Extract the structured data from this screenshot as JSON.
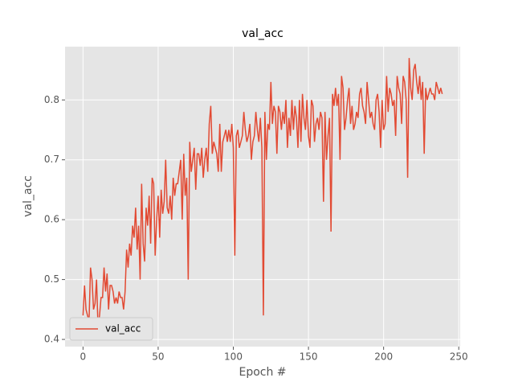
{
  "chart_data": {
    "type": "line",
    "title": "val_acc",
    "x_label": "Epoch #",
    "y_label": "val_acc",
    "x": [
      0,
      1,
      2,
      3,
      4,
      5,
      6,
      7,
      8,
      9,
      10,
      11,
      12,
      13,
      14,
      15,
      16,
      17,
      18,
      19,
      20,
      21,
      22,
      23,
      24,
      25,
      26,
      27,
      28,
      29,
      30,
      31,
      32,
      33,
      34,
      35,
      36,
      37,
      38,
      39,
      40,
      41,
      42,
      43,
      44,
      45,
      46,
      47,
      48,
      49,
      50,
      51,
      52,
      53,
      54,
      55,
      56,
      57,
      58,
      59,
      60,
      61,
      62,
      63,
      64,
      65,
      66,
      67,
      68,
      69,
      70,
      71,
      72,
      73,
      74,
      75,
      76,
      77,
      78,
      79,
      80,
      81,
      82,
      83,
      84,
      85,
      86,
      87,
      88,
      89,
      90,
      91,
      92,
      93,
      94,
      95,
      96,
      97,
      98,
      99,
      100,
      101,
      102,
      103,
      104,
      105,
      106,
      107,
      108,
      109,
      110,
      111,
      112,
      113,
      114,
      115,
      116,
      117,
      118,
      119,
      120,
      121,
      122,
      123,
      124,
      125,
      126,
      127,
      128,
      129,
      130,
      131,
      132,
      133,
      134,
      135,
      136,
      137,
      138,
      139,
      140,
      141,
      142,
      143,
      144,
      145,
      146,
      147,
      148,
      149,
      150,
      151,
      152,
      153,
      154,
      155,
      156,
      157,
      158,
      159,
      160,
      161,
      162,
      163,
      164,
      165,
      166,
      167,
      168,
      169,
      170,
      171,
      172,
      173,
      174,
      175,
      176,
      177,
      178,
      179,
      180,
      181,
      182,
      183,
      184,
      185,
      186,
      187,
      188,
      189,
      190,
      191,
      192,
      193,
      194,
      195,
      196,
      197,
      198,
      199,
      200,
      201,
      202,
      203,
      204,
      205,
      206,
      207,
      208,
      209,
      210,
      211,
      212,
      213,
      214,
      215,
      216,
      217,
      218,
      219,
      220,
      221,
      222,
      223,
      224,
      225,
      226,
      227,
      228,
      229,
      230,
      231,
      232,
      233,
      234,
      235,
      236,
      237,
      238,
      239
    ],
    "series": [
      {
        "name": "val_acc",
        "color": "#e24a33",
        "values": [
          0.44,
          0.49,
          0.45,
          0.44,
          0.43,
          0.52,
          0.5,
          0.45,
          0.46,
          0.5,
          0.42,
          0.44,
          0.47,
          0.47,
          0.52,
          0.48,
          0.51,
          0.45,
          0.49,
          0.49,
          0.48,
          0.46,
          0.47,
          0.46,
          0.48,
          0.47,
          0.47,
          0.45,
          0.48,
          0.55,
          0.52,
          0.56,
          0.54,
          0.59,
          0.57,
          0.62,
          0.55,
          0.59,
          0.5,
          0.66,
          0.56,
          0.53,
          0.62,
          0.59,
          0.64,
          0.56,
          0.67,
          0.66,
          0.54,
          0.6,
          0.64,
          0.57,
          0.65,
          0.61,
          0.63,
          0.7,
          0.62,
          0.61,
          0.64,
          0.6,
          0.67,
          0.64,
          0.66,
          0.66,
          0.68,
          0.7,
          0.6,
          0.71,
          0.64,
          0.67,
          0.5,
          0.73,
          0.68,
          0.7,
          0.72,
          0.65,
          0.71,
          0.71,
          0.69,
          0.72,
          0.67,
          0.7,
          0.72,
          0.68,
          0.76,
          0.79,
          0.71,
          0.73,
          0.72,
          0.71,
          0.68,
          0.76,
          0.68,
          0.73,
          0.74,
          0.75,
          0.73,
          0.75,
          0.73,
          0.76,
          0.72,
          0.54,
          0.74,
          0.75,
          0.72,
          0.73,
          0.74,
          0.78,
          0.75,
          0.73,
          0.74,
          0.76,
          0.7,
          0.73,
          0.74,
          0.78,
          0.75,
          0.73,
          0.77,
          0.72,
          0.44,
          0.78,
          0.7,
          0.76,
          0.75,
          0.83,
          0.76,
          0.79,
          0.78,
          0.71,
          0.79,
          0.78,
          0.75,
          0.78,
          0.76,
          0.8,
          0.72,
          0.77,
          0.74,
          0.8,
          0.75,
          0.79,
          0.77,
          0.72,
          0.8,
          0.73,
          0.81,
          0.77,
          0.75,
          0.8,
          0.74,
          0.72,
          0.8,
          0.79,
          0.73,
          0.76,
          0.77,
          0.75,
          0.78,
          0.77,
          0.63,
          0.78,
          0.7,
          0.74,
          0.77,
          0.58,
          0.81,
          0.79,
          0.82,
          0.79,
          0.81,
          0.7,
          0.84,
          0.82,
          0.75,
          0.77,
          0.8,
          0.82,
          0.76,
          0.79,
          0.75,
          0.76,
          0.78,
          0.77,
          0.81,
          0.82,
          0.79,
          0.78,
          0.76,
          0.83,
          0.8,
          0.77,
          0.78,
          0.76,
          0.75,
          0.8,
          0.81,
          0.78,
          0.72,
          0.8,
          0.75,
          0.76,
          0.84,
          0.78,
          0.82,
          0.81,
          0.79,
          0.8,
          0.74,
          0.84,
          0.82,
          0.81,
          0.76,
          0.84,
          0.83,
          0.8,
          0.67,
          0.87,
          0.82,
          0.8,
          0.85,
          0.86,
          0.83,
          0.81,
          0.84,
          0.8,
          0.83,
          0.71,
          0.82,
          0.8,
          0.81,
          0.82,
          0.81,
          0.81,
          0.8,
          0.83,
          0.82,
          0.81,
          0.82,
          0.81
        ]
      }
    ],
    "xlim": [
      -11.95,
      250.95
    ],
    "ylim": [
      0.388,
      0.889
    ],
    "xticks": [
      0,
      50,
      100,
      150,
      200,
      250
    ],
    "yticks": [
      0.4,
      0.5,
      0.6,
      0.7,
      0.8
    ],
    "grid": true,
    "legend": "lower left"
  }
}
